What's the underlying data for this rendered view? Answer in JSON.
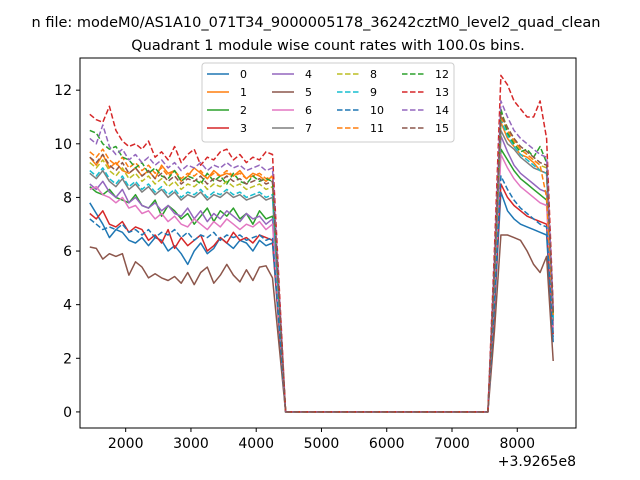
{
  "chart_data": {
    "type": "line",
    "suptitle": "n file: modeM0/AS1A10_071T34_9000005178_36242cztM0_level2_quad_clean",
    "title": "Quadrant 1 module wise count rates with 100.0s bins.",
    "xlabel": "",
    "ylabel": "",
    "x_offset_label": "+3.9265e8",
    "xlim": [
      1300,
      8900
    ],
    "ylim": [
      -0.6,
      13.2
    ],
    "xticks": [
      2000,
      3000,
      4000,
      5000,
      6000,
      7000,
      8000
    ],
    "yticks": [
      0,
      2,
      4,
      6,
      8,
      10,
      12
    ],
    "grid": false,
    "legend_position": "top-center",
    "legend_columns": 4,
    "x": [
      1450,
      1550,
      1650,
      1750,
      1850,
      1950,
      2050,
      2150,
      2250,
      2350,
      2450,
      2550,
      2650,
      2750,
      2850,
      2950,
      3050,
      3150,
      3250,
      3350,
      3450,
      3550,
      3650,
      3750,
      3850,
      3950,
      4050,
      4150,
      4250,
      4450,
      7550,
      7650,
      7750,
      7850,
      7950,
      8050,
      8150,
      8250,
      8350,
      8450,
      8550
    ],
    "series": [
      {
        "name": "0",
        "color": "#1f77b4",
        "dashed": false,
        "values": [
          7.8,
          7.4,
          7.0,
          6.5,
          6.8,
          6.7,
          6.4,
          6.3,
          6.5,
          6.2,
          6.5,
          6.4,
          6.0,
          6.2,
          5.9,
          5.5,
          6.0,
          6.3,
          5.9,
          6.1,
          6.5,
          6.3,
          6.1,
          6.4,
          6.3,
          6.0,
          6.4,
          6.2,
          6.3,
          0,
          0,
          3.8,
          8.2,
          7.5,
          7.2,
          7.0,
          6.9,
          6.8,
          6.7,
          6.6,
          2.6
        ]
      },
      {
        "name": "1",
        "color": "#ff7f0e",
        "dashed": false,
        "values": [
          9.5,
          9.2,
          9.6,
          9.1,
          9.3,
          9.0,
          8.9,
          9.1,
          8.8,
          9.0,
          8.7,
          9.2,
          8.9,
          9.0,
          8.6,
          8.8,
          9.1,
          8.9,
          8.7,
          9.0,
          8.8,
          8.9,
          8.8,
          9.0,
          8.7,
          8.9,
          8.8,
          8.6,
          8.8,
          0,
          0,
          5.0,
          10.8,
          10.2,
          9.9,
          9.6,
          9.5,
          9.3,
          9.0,
          8.9,
          3.5
        ]
      },
      {
        "name": "2",
        "color": "#2ca02c",
        "dashed": false,
        "values": [
          8.4,
          8.2,
          8.1,
          8.3,
          8.0,
          7.9,
          7.8,
          8.1,
          7.7,
          7.6,
          7.9,
          7.3,
          7.7,
          7.5,
          7.2,
          7.4,
          7.0,
          7.3,
          7.6,
          7.1,
          7.5,
          7.3,
          7.6,
          7.2,
          7.4,
          7.0,
          7.5,
          7.2,
          7.3,
          0,
          0,
          4.5,
          9.8,
          9.4,
          9.0,
          8.7,
          8.5,
          8.3,
          8.1,
          7.9,
          3.2
        ]
      },
      {
        "name": "3",
        "color": "#d62728",
        "dashed": false,
        "values": [
          7.4,
          7.2,
          7.5,
          7.0,
          6.9,
          7.1,
          6.7,
          6.9,
          6.8,
          6.4,
          6.6,
          6.3,
          6.8,
          6.1,
          6.5,
          6.2,
          6.4,
          6.6,
          6.0,
          6.2,
          6.5,
          6.3,
          6.7,
          6.4,
          6.5,
          6.3,
          6.6,
          6.5,
          6.4,
          0,
          0,
          4.0,
          8.5,
          8.0,
          7.7,
          7.5,
          7.3,
          7.2,
          7.1,
          7.0,
          2.9
        ]
      },
      {
        "name": "4",
        "color": "#9467bd",
        "dashed": false,
        "values": [
          8.5,
          8.3,
          8.6,
          8.2,
          8.0,
          8.3,
          7.8,
          8.0,
          7.7,
          7.6,
          7.8,
          7.5,
          7.7,
          7.4,
          7.3,
          7.6,
          7.2,
          7.5,
          7.1,
          7.4,
          7.2,
          7.5,
          7.3,
          7.1,
          7.4,
          7.2,
          7.3,
          7.0,
          7.2,
          0,
          0,
          4.6,
          10.3,
          9.7,
          9.2,
          8.9,
          8.7,
          8.5,
          8.3,
          8.2,
          3.3
        ]
      },
      {
        "name": "5",
        "color": "#8c564b",
        "dashed": false,
        "values": [
          6.15,
          6.1,
          5.7,
          5.9,
          5.8,
          5.9,
          5.1,
          5.6,
          5.4,
          5.0,
          5.15,
          5.0,
          4.9,
          5.05,
          4.8,
          5.2,
          4.75,
          5.2,
          5.4,
          4.8,
          5.1,
          5.5,
          5.1,
          4.85,
          5.3,
          4.9,
          5.4,
          5.45,
          5.0,
          0,
          0,
          3.0,
          6.6,
          6.6,
          6.5,
          6.4,
          6.0,
          5.5,
          5.2,
          5.8,
          1.9
        ]
      },
      {
        "name": "6",
        "color": "#e377c2",
        "dashed": false,
        "values": [
          8.3,
          8.4,
          8.1,
          8.0,
          7.8,
          8.0,
          7.6,
          7.7,
          7.4,
          7.5,
          7.2,
          7.4,
          7.1,
          7.3,
          7.0,
          6.9,
          7.2,
          7.0,
          6.8,
          7.1,
          6.9,
          7.2,
          7.0,
          6.8,
          7.0,
          6.9,
          7.1,
          6.8,
          7.0,
          0,
          0,
          4.4,
          9.6,
          9.1,
          8.7,
          8.4,
          8.2,
          8.0,
          7.8,
          7.7,
          3.1
        ]
      },
      {
        "name": "7",
        "color": "#7f7f7f",
        "dashed": false,
        "values": [
          8.9,
          8.7,
          9.0,
          8.6,
          8.4,
          8.7,
          8.3,
          8.5,
          8.2,
          8.4,
          8.1,
          8.3,
          8.0,
          8.2,
          7.9,
          8.1,
          8.0,
          8.2,
          7.9,
          8.1,
          8.0,
          8.2,
          8.0,
          8.1,
          7.9,
          8.0,
          8.1,
          7.9,
          8.0,
          0,
          0,
          4.9,
          10.5,
          10.0,
          9.8,
          9.5,
          9.3,
          9.1,
          9.0,
          8.9,
          3.4
        ]
      },
      {
        "name": "8",
        "color": "#bcbd22",
        "dashed": true,
        "values": [
          9.3,
          9.1,
          9.4,
          9.0,
          8.8,
          9.1,
          8.7,
          8.9,
          8.6,
          8.8,
          8.5,
          8.7,
          8.4,
          8.6,
          8.3,
          8.5,
          8.4,
          8.6,
          8.3,
          8.5,
          8.4,
          8.6,
          8.4,
          8.5,
          8.3,
          8.4,
          8.5,
          8.3,
          8.4,
          0,
          0,
          5.1,
          11.2,
          10.6,
          10.2,
          9.8,
          9.6,
          9.4,
          9.2,
          9.1,
          3.6
        ]
      },
      {
        "name": "9",
        "color": "#17becf",
        "dashed": true,
        "values": [
          9.0,
          8.8,
          9.1,
          8.7,
          8.5,
          8.8,
          8.4,
          8.6,
          8.3,
          8.5,
          8.2,
          8.4,
          8.1,
          8.3,
          8.0,
          8.2,
          8.1,
          8.3,
          8.0,
          8.2,
          8.1,
          8.3,
          8.1,
          8.2,
          8.0,
          8.1,
          8.2,
          8.0,
          8.1,
          0,
          0,
          5.0,
          10.9,
          10.3,
          9.9,
          9.6,
          9.4,
          9.2,
          9.0,
          8.9,
          3.5
        ]
      },
      {
        "name": "10",
        "color": "#1f77b4",
        "dashed": true,
        "values": [
          7.2,
          7.0,
          6.8,
          6.9,
          6.8,
          7.0,
          6.7,
          6.8,
          6.6,
          6.8,
          6.5,
          6.7,
          6.6,
          6.8,
          6.5,
          6.7,
          6.4,
          6.6,
          6.5,
          6.7,
          6.4,
          6.6,
          6.5,
          6.6,
          6.4,
          6.5,
          6.6,
          6.4,
          6.5,
          0,
          0,
          4.1,
          8.8,
          8.3,
          7.9,
          7.6,
          7.4,
          7.2,
          7.0,
          6.9,
          2.8
        ]
      },
      {
        "name": "11",
        "color": "#ff7f0e",
        "dashed": true,
        "values": [
          9.7,
          9.5,
          9.8,
          9.4,
          9.2,
          9.5,
          9.1,
          9.3,
          9.0,
          9.2,
          8.9,
          9.1,
          8.8,
          9.0,
          8.7,
          8.9,
          8.8,
          9.0,
          8.7,
          8.9,
          8.8,
          9.0,
          8.8,
          8.9,
          8.7,
          8.8,
          8.9,
          8.7,
          8.8,
          0,
          0,
          5.2,
          11.0,
          10.5,
          10.1,
          9.8,
          9.6,
          9.4,
          9.2,
          8.0,
          3.6
        ]
      },
      {
        "name": "12",
        "color": "#2ca02c",
        "dashed": true,
        "values": [
          10.5,
          10.4,
          10.0,
          9.8,
          9.9,
          9.5,
          9.4,
          9.1,
          9.3,
          8.9,
          9.1,
          8.8,
          8.7,
          9.0,
          8.6,
          8.8,
          8.7,
          8.5,
          8.9,
          8.6,
          8.8,
          8.5,
          8.9,
          8.6,
          8.5,
          8.8,
          8.6,
          8.7,
          8.6,
          0,
          0,
          5.5,
          11.3,
          10.4,
          10.0,
          9.7,
          9.8,
          9.5,
          9.9,
          9.3,
          3.7
        ]
      },
      {
        "name": "13",
        "color": "#d62728",
        "dashed": true,
        "values": [
          11.1,
          10.9,
          10.8,
          11.4,
          10.5,
          10.1,
          9.9,
          10.0,
          9.8,
          10.1,
          9.5,
          9.7,
          9.4,
          9.9,
          9.3,
          9.6,
          9.8,
          9.2,
          9.5,
          9.4,
          9.7,
          9.8,
          9.4,
          9.6,
          9.3,
          9.5,
          9.4,
          9.7,
          9.6,
          0,
          0,
          6.0,
          12.55,
          12.2,
          11.6,
          11.3,
          11.0,
          11.0,
          11.6,
          10.2,
          3.9
        ]
      },
      {
        "name": "14",
        "color": "#9467bd",
        "dashed": true,
        "values": [
          10.2,
          10.0,
          10.7,
          9.9,
          9.6,
          9.8,
          9.4,
          9.6,
          9.3,
          9.5,
          9.2,
          9.4,
          9.1,
          9.3,
          9.0,
          9.2,
          9.1,
          9.3,
          9.0,
          9.2,
          9.1,
          9.3,
          9.1,
          9.2,
          9.0,
          9.1,
          9.2,
          9.0,
          9.1,
          0,
          0,
          5.6,
          11.6,
          11.0,
          10.5,
          10.2,
          10.0,
          9.8,
          9.6,
          9.5,
          3.8
        ]
      },
      {
        "name": "15",
        "color": "#8c564b",
        "dashed": true,
        "values": [
          9.5,
          9.3,
          9.6,
          9.2,
          9.0,
          9.3,
          8.9,
          9.1,
          8.8,
          9.0,
          8.7,
          8.9,
          8.6,
          8.8,
          8.5,
          8.7,
          8.6,
          8.8,
          8.5,
          8.7,
          8.6,
          8.8,
          8.6,
          8.7,
          8.5,
          8.6,
          8.7,
          8.5,
          8.6,
          0,
          0,
          5.3,
          11.1,
          10.6,
          10.2,
          9.9,
          9.7,
          9.5,
          9.3,
          9.2,
          3.7
        ]
      }
    ]
  }
}
